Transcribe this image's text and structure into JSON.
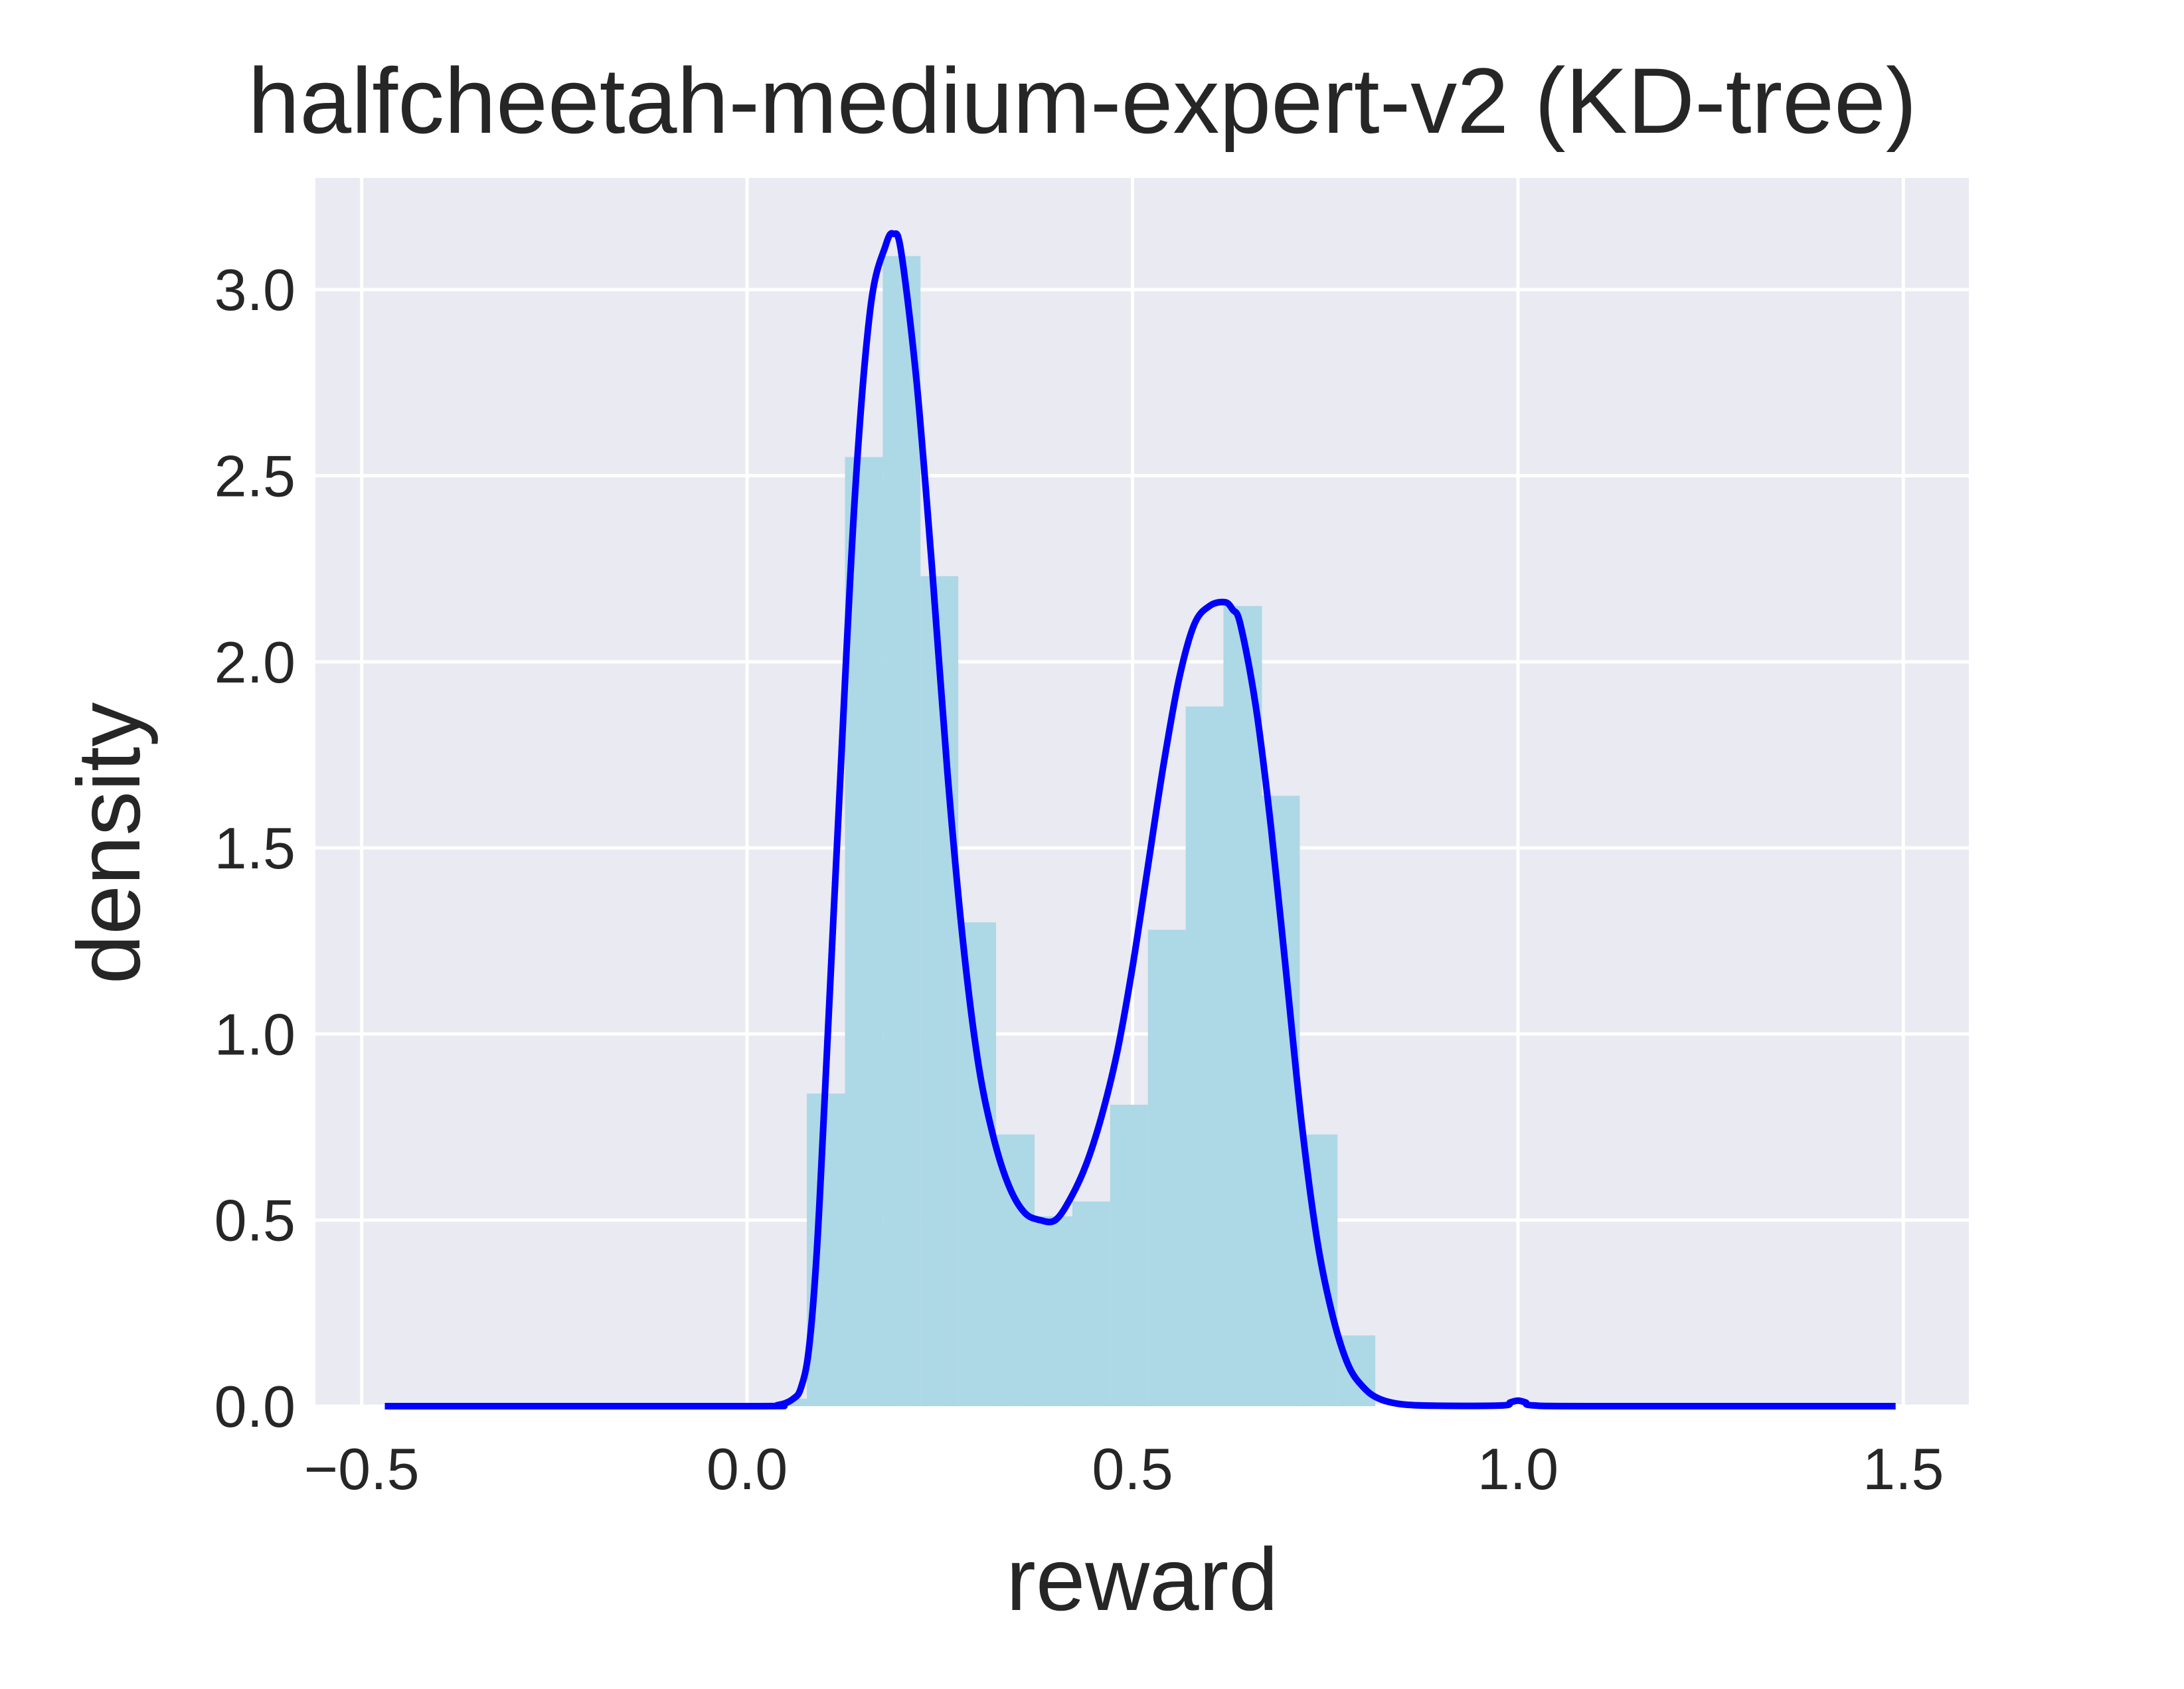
{
  "chart_data": {
    "type": "histogram+line",
    "title": "halfcheetah-medium-expert-v2 (KD-tree)",
    "xlabel": "reward",
    "ylabel": "density",
    "xlim": [
      -0.56,
      1.585
    ],
    "ylim": [
      0.0,
      3.3
    ],
    "xticks": [
      -0.5,
      0.0,
      0.5,
      1.0,
      1.5
    ],
    "xtick_labels": [
      "−0.5",
      "0.0",
      "0.5",
      "1.0",
      "1.5"
    ],
    "yticks": [
      0.0,
      0.5,
      1.0,
      1.5,
      2.0,
      2.5,
      3.0
    ],
    "ytick_labels": [
      "0.0",
      "0.5",
      "1.0",
      "1.5",
      "2.0",
      "2.5",
      "3.0"
    ],
    "grid": true,
    "colors": {
      "background": "#eaeaf2",
      "grid": "#ffffff",
      "bars": "#add8e6",
      "line": "#0000ff",
      "text": "#262626"
    },
    "histogram": {
      "bin_edges": [
        0.05,
        0.0775,
        0.127,
        0.176,
        0.225,
        0.274,
        0.323,
        0.373,
        0.422,
        0.471,
        0.52,
        0.569,
        0.618,
        0.668,
        0.717,
        0.766,
        0.815
      ],
      "values": [
        0.02,
        0.84,
        2.55,
        3.09,
        2.23,
        1.3,
        0.73,
        0.51,
        0.55,
        0.81,
        1.28,
        1.88,
        2.15,
        1.64,
        0.73,
        0.19
      ]
    },
    "density_curve": {
      "x": [
        -0.47,
        0.0,
        0.04,
        0.06,
        0.07,
        0.08,
        0.09,
        0.1,
        0.12,
        0.14,
        0.16,
        0.18,
        0.19,
        0.2,
        0.22,
        0.24,
        0.26,
        0.28,
        0.3,
        0.32,
        0.34,
        0.36,
        0.38,
        0.4,
        0.42,
        0.44,
        0.46,
        0.48,
        0.5,
        0.52,
        0.54,
        0.56,
        0.58,
        0.6,
        0.62,
        0.63,
        0.64,
        0.66,
        0.68,
        0.7,
        0.72,
        0.74,
        0.76,
        0.78,
        0.8,
        0.82,
        0.85,
        0.9,
        0.98,
        0.99,
        1.0,
        1.01,
        1.02,
        1.1,
        1.49
      ],
      "y": [
        0.0,
        0.0,
        0.003,
        0.02,
        0.05,
        0.15,
        0.4,
        0.8,
        1.65,
        2.45,
        2.95,
        3.12,
        3.15,
        3.1,
        2.75,
        2.25,
        1.7,
        1.25,
        0.92,
        0.72,
        0.59,
        0.52,
        0.5,
        0.5,
        0.56,
        0.65,
        0.78,
        0.95,
        1.18,
        1.45,
        1.72,
        1.95,
        2.1,
        2.15,
        2.16,
        2.14,
        2.1,
        1.88,
        1.55,
        1.15,
        0.75,
        0.44,
        0.24,
        0.11,
        0.05,
        0.02,
        0.005,
        0.001,
        0.002,
        0.01,
        0.015,
        0.01,
        0.002,
        0.0,
        0.0
      ]
    }
  }
}
